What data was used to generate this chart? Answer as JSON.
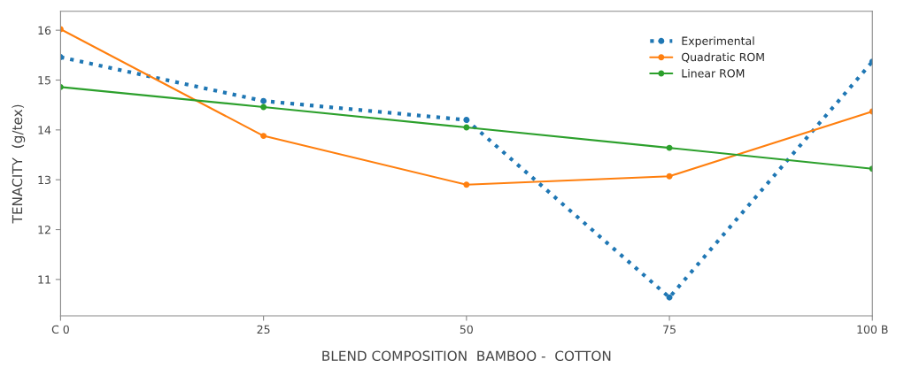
{
  "chart_data": {
    "type": "line",
    "xlabel": "BLEND COMPOSITION  BAMBOO -  COTTON",
    "ylabel": "TENACITY  (g/tex)",
    "x": [
      0,
      25,
      50,
      75,
      100
    ],
    "series": [
      {
        "name": "Experimental",
        "color": "#1f77b4",
        "line_style": "dotted",
        "values": [
          15.46,
          14.58,
          14.2,
          10.64,
          15.37
        ]
      },
      {
        "name": "Quadratic ROM",
        "color": "#ff7f0e",
        "line_style": "solid",
        "values": [
          16.02,
          13.88,
          12.9,
          13.07,
          14.37
        ]
      },
      {
        "name": "Linear ROM",
        "color": "#2ca02c",
        "line_style": "solid",
        "values": [
          14.86,
          14.46,
          14.05,
          13.64,
          13.22
        ]
      }
    ],
    "xlim": [
      0,
      100
    ],
    "xticks": [
      {
        "value": 0,
        "label": "C 0"
      },
      25,
      50,
      75,
      {
        "value": 100,
        "label": "100 B"
      }
    ],
    "ylim": [
      10.27,
      16.38
    ],
    "yticks": [
      11,
      12,
      13,
      14,
      15,
      16
    ],
    "grid": false,
    "legend": "top right",
    "marker": "circle"
  }
}
